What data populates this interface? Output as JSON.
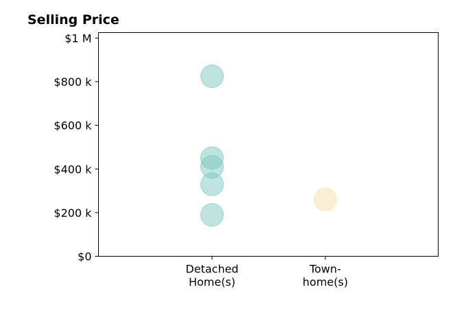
{
  "chart_data": {
    "type": "scatter",
    "title": "Selling Price",
    "xlabel": "",
    "ylabel": "",
    "categories": [
      [
        "Detached",
        "Home(s)"
      ],
      [
        "Town-",
        "home(s)"
      ]
    ],
    "ylim": [
      0,
      1025000
    ],
    "yticks": [
      {
        "value": 0,
        "label": "$0"
      },
      {
        "value": 200000,
        "label": "$200 k"
      },
      {
        "value": 400000,
        "label": "$400 k"
      },
      {
        "value": 600000,
        "label": "$600 k"
      },
      {
        "value": 800000,
        "label": "$800 k"
      },
      {
        "value": 1000000,
        "label": "$1 M"
      }
    ],
    "grid": false,
    "series": [
      {
        "category": 0,
        "color": "#7fc8bf",
        "values": [
          825000,
          450000,
          410000,
          330000,
          190000
        ]
      },
      {
        "category": 1,
        "color": "#f8e0a8",
        "values": [
          260000
        ]
      }
    ]
  }
}
